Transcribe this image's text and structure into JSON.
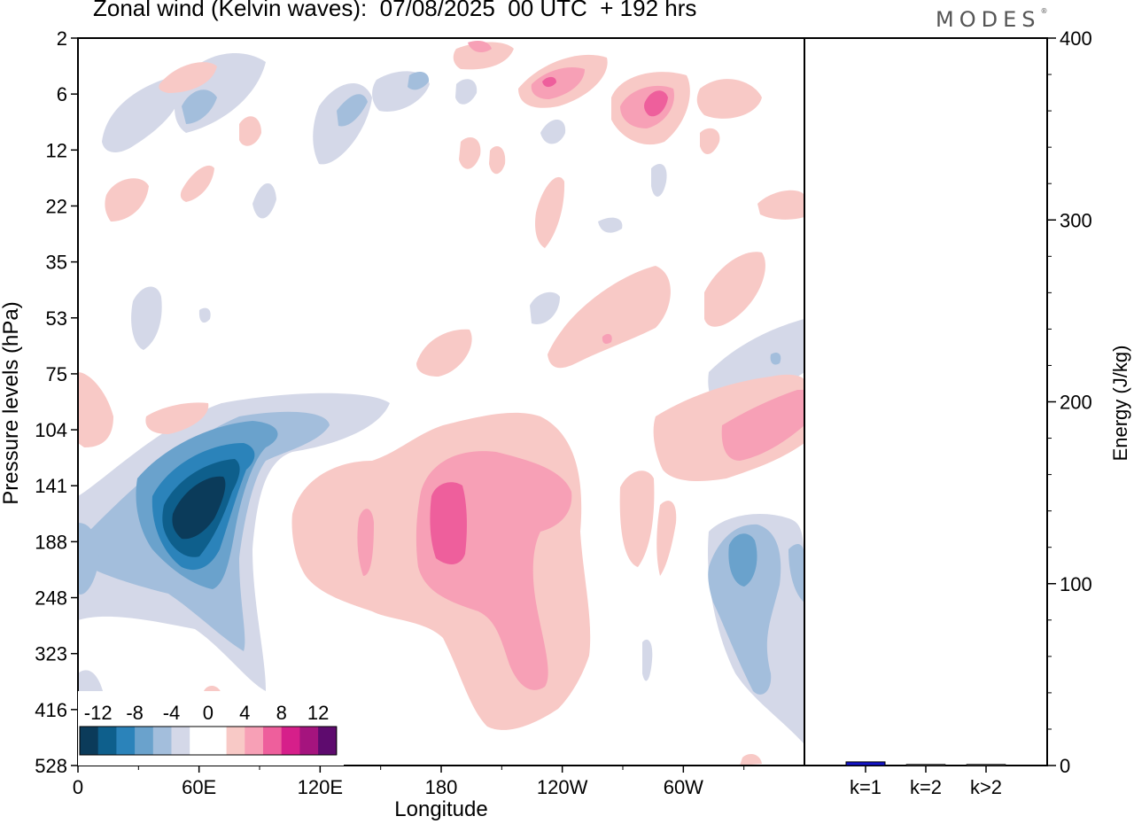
{
  "title": "Zonal wind (Kelvin waves):  07/08/2025  00 UTC  + 192 hrs",
  "brand": "MODES",
  "brand_mark": "®",
  "colors": {
    "neg6": "#0b3b5a",
    "neg5": "#0e5f8c",
    "neg4": "#2b83ba",
    "neg3": "#6aa2cc",
    "neg2": "#a3bedc",
    "neg1": "#d4d8e8",
    "zero": "#ffffff",
    "pos1": "#f8c9c6",
    "pos2": "#f7a0b6",
    "pos3": "#ee5f9c",
    "pos4": "#d61f8a",
    "pos5": "#a5147e",
    "pos6": "#5e0b6e",
    "bar": "#1515c8"
  },
  "chart_data": [
    {
      "type": "heatmap",
      "title": "Zonal wind (Kelvin waves):  07/08/2025  00 UTC  + 192 hrs",
      "xlabel": "Longitude",
      "ylabel": "Pressure levels (hPa)",
      "x_ticks": [
        "0",
        "60E",
        "120E",
        "180",
        "120W",
        "60W"
      ],
      "x_tick_lon": [
        0,
        60,
        120,
        180,
        240,
        300
      ],
      "xlim": [
        0,
        360
      ],
      "y_ticks": [
        "2",
        "6",
        "12",
        "22",
        "35",
        "53",
        "75",
        "104",
        "141",
        "188",
        "248",
        "323",
        "416",
        "528"
      ],
      "colorbar": {
        "labels": [
          "-12",
          "-8",
          "-4",
          "0",
          "4",
          "8",
          "12"
        ],
        "levels": [
          -14,
          -12,
          -10,
          -8,
          -6,
          -4,
          -2,
          2,
          4,
          6,
          8,
          10,
          12,
          14
        ]
      },
      "anomalies": [
        {
          "lon": 70,
          "level": "141",
          "value": -14
        },
        {
          "lon": 190,
          "level": "188",
          "value": 7
        },
        {
          "lon": 330,
          "level": "188",
          "value": -6
        },
        {
          "lon": 325,
          "level": "104",
          "value": 5
        },
        {
          "lon": 285,
          "level": "6",
          "value": 5
        },
        {
          "lon": 240,
          "level": "6",
          "value": 5
        }
      ]
    },
    {
      "type": "bar",
      "ylabel": "Energy (J/kg)",
      "categories": [
        "k=1",
        "k=2",
        "k>2"
      ],
      "values": [
        2,
        0.3,
        0.6
      ],
      "ylim": [
        0,
        400
      ],
      "y_ticks": [
        "0",
        "100",
        "200",
        "300",
        "400"
      ]
    }
  ]
}
